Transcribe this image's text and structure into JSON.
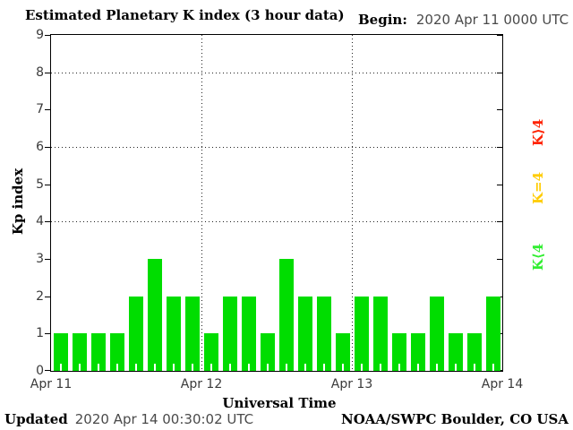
{
  "header": {
    "title": "Estimated Planetary K index (3 hour data)",
    "begin_label": "Begin:",
    "begin_value": "2020 Apr 11 0000 UTC"
  },
  "footer": {
    "updated_label": "Updated",
    "updated_value": "2020 Apr 14 00:30:02 UTC",
    "credit": "NOAA/SWPC Boulder, CO USA"
  },
  "legend": {
    "position": "right",
    "items": [
      {
        "label": "K⟩4",
        "color": "#ff2200"
      },
      {
        "label": "K=4",
        "color": "#ffcc00"
      },
      {
        "label": "K⟨4",
        "color": "#33ee33"
      }
    ]
  },
  "chart_data": {
    "type": "bar",
    "title": "Estimated Planetary K index (3 hour data)",
    "xlabel": "Universal Time",
    "ylabel": "Kp index",
    "begin": "2020 Apr 11 0000 UTC",
    "interval_hours": 3,
    "ylim": [
      0,
      9
    ],
    "y_ticks": [
      0,
      1,
      2,
      3,
      4,
      5,
      6,
      7,
      8,
      9
    ],
    "dotted_gridlines_y": [
      4,
      6,
      8
    ],
    "x_tick_labels": [
      "Apr 11",
      "Apr 12",
      "Apr 13",
      "Apr 14"
    ],
    "values": [
      1,
      1,
      1,
      1,
      2,
      3,
      2,
      2,
      1,
      2,
      2,
      1,
      3,
      2,
      2,
      1,
      2,
      2,
      1,
      1,
      2,
      1,
      1,
      2
    ],
    "colors": {
      "below_4": "#00dd00",
      "equal_4": "#ffcc00",
      "above_4": "#ff2200"
    },
    "grid": "dotted",
    "background": "#ffffff"
  }
}
